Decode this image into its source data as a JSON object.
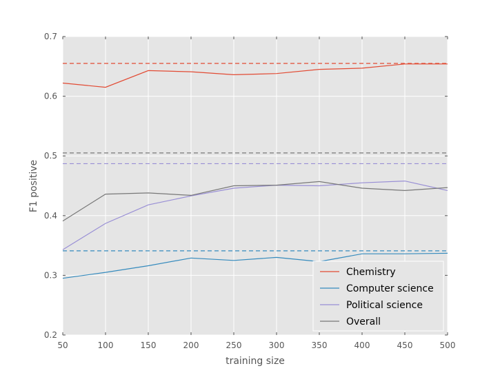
{
  "chart_data": {
    "type": "line",
    "xlabel": "training size",
    "ylabel": "F1 positive",
    "xlim": [
      50,
      500
    ],
    "ylim": [
      0.2,
      0.7
    ],
    "xticks": [
      "50",
      "100",
      "150",
      "200",
      "250",
      "300",
      "350",
      "400",
      "450",
      "500"
    ],
    "yticks": [
      "0.2",
      "0.3",
      "0.4",
      "0.5",
      "0.6",
      "0.7"
    ],
    "grid": true,
    "legend_position": "lower-right",
    "x": [
      50,
      100,
      150,
      200,
      250,
      300,
      350,
      400,
      450,
      500
    ],
    "series": [
      {
        "name": "Chemistry",
        "color": "#E24A33",
        "values": [
          0.622,
          0.615,
          0.643,
          0.641,
          0.636,
          0.638,
          0.645,
          0.647,
          0.654,
          0.654
        ],
        "baseline": 0.655
      },
      {
        "name": "Computer science",
        "color": "#348ABD",
        "values": [
          0.295,
          0.305,
          0.316,
          0.329,
          0.325,
          0.33,
          0.323,
          0.336,
          0.336,
          0.337
        ],
        "baseline": 0.341
      },
      {
        "name": "Political science",
        "color": "#988ED5",
        "values": [
          0.343,
          0.387,
          0.418,
          0.433,
          0.446,
          0.451,
          0.45,
          0.455,
          0.458,
          0.442
        ],
        "baseline": 0.487
      },
      {
        "name": "Overall",
        "color": "#777777",
        "values": [
          0.391,
          0.436,
          0.438,
          0.434,
          0.45,
          0.451,
          0.457,
          0.446,
          0.442,
          0.447
        ],
        "baseline": 0.505
      }
    ]
  }
}
